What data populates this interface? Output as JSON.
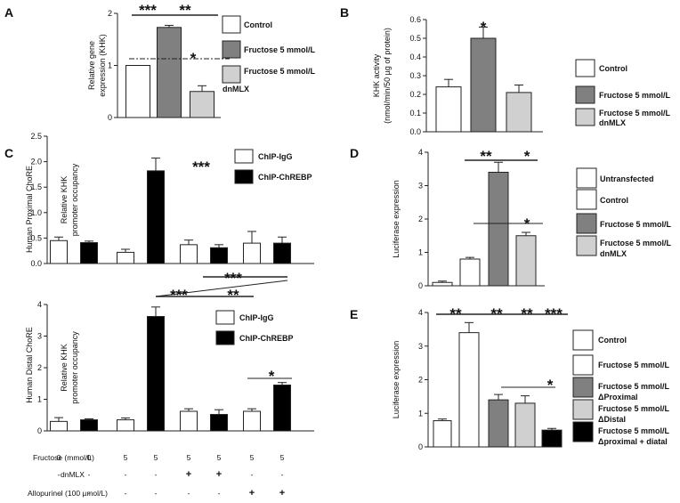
{
  "colors": {
    "white": "#ffffff",
    "dark_gray": "#808080",
    "light_gray": "#d0d0d0",
    "black": "#000000",
    "axis": "#222222"
  },
  "chart_data": [
    {
      "panel": "A",
      "type": "bar",
      "ylabel": "Relative gene expression (KHK)",
      "ylim": [
        0,
        2
      ],
      "yticks": [
        0,
        1,
        2
      ],
      "categories": [
        "Control",
        "Fructose 5 mmol/L",
        "Fructose 5 mmol/L dnMLX"
      ],
      "values": [
        1.0,
        1.73,
        0.5
      ],
      "errors": [
        0,
        0.04,
        0.11
      ],
      "fills": [
        "white",
        "dark_gray",
        "light_gray"
      ],
      "legend": [
        "Control",
        "Fructose 5 mmol/L",
        "Fructose 5 mmol/L dnMLX"
      ],
      "annotations": [
        "***",
        "**",
        "*"
      ]
    },
    {
      "panel": "B",
      "type": "bar",
      "ylabel": "KHK activity (nmol/min/50 µg of protein)",
      "ylim": [
        0,
        0.6
      ],
      "yticks": [
        0,
        0.1,
        0.2,
        0.3,
        0.4,
        0.5,
        0.6
      ],
      "categories": [
        "Control",
        "Fructose 5 mmol/L",
        "Fructose 5 mmol/L dnMLX"
      ],
      "values": [
        0.24,
        0.5,
        0.21
      ],
      "errors": [
        0.04,
        0.06,
        0.04
      ],
      "fills": [
        "white",
        "dark_gray",
        "light_gray"
      ],
      "legend": [
        "Control",
        "Fructose 5 mmol/L",
        "Fructose 5 mmol/L dnMLX"
      ],
      "annotations": [
        "*"
      ]
    },
    {
      "panel": "C",
      "type": "bar",
      "side_label": "Human Proximal ChoRE",
      "ylabel": "Relative KHK promoter occupancy",
      "ylim": [
        0,
        2.5
      ],
      "yticks": [
        0,
        0.5,
        1.0,
        1.5,
        2.0,
        2.5
      ],
      "series": [
        {
          "name": "ChIP-IgG",
          "values": [
            0.45,
            0.22,
            0.37,
            0.4
          ],
          "errors": [
            0.07,
            0.06,
            0.09,
            0.23
          ]
        },
        {
          "name": "ChIP-ChREBP",
          "values": [
            0.41,
            1.82,
            0.31,
            0.4
          ],
          "errors": [
            0.03,
            0.25,
            0.06,
            0.12
          ]
        }
      ],
      "legend": [
        "ChIP-IgG",
        "ChIP-ChREBP"
      ],
      "annotations": [
        "***"
      ]
    },
    {
      "panel": "C-lower",
      "type": "bar",
      "side_label": "Human Distal ChoRE",
      "ylabel": "Relative KHK promoter occupancy",
      "ylim": [
        0,
        4
      ],
      "yticks": [
        0,
        1,
        2,
        3,
        4
      ],
      "series": [
        {
          "name": "ChIP-IgG",
          "values": [
            0.3,
            0.35,
            0.62,
            0.62
          ],
          "errors": [
            0.12,
            0.06,
            0.08,
            0.08
          ]
        },
        {
          "name": "ChIP-ChREBP",
          "values": [
            0.35,
            3.62,
            0.52,
            1.45
          ],
          "errors": [
            0.03,
            0.3,
            0.15,
            0.08
          ]
        }
      ],
      "legend": [
        "ChIP-IgG",
        "ChIP-ChREBP"
      ],
      "annotations": [
        "***",
        "***",
        "**",
        "*"
      ]
    },
    {
      "panel": "D",
      "type": "bar",
      "ylabel": "Luciferase expression",
      "ylim": [
        0,
        4
      ],
      "yticks": [
        0,
        1,
        2,
        3,
        4
      ],
      "categories": [
        "Untransfected",
        "Control",
        "Fructose 5 mmol/L",
        "Fructose 5 mmol/L dnMLX"
      ],
      "values": [
        0.1,
        0.8,
        3.4,
        1.5
      ],
      "errors": [
        0.04,
        0.05,
        0.3,
        0.1
      ],
      "fills": [
        "white",
        "white",
        "dark_gray",
        "light_gray"
      ],
      "legend": [
        "Untransfected",
        "Control",
        "Fructose 5 mmol/L",
        "Fructose 5 mmol/L dnMLX"
      ],
      "annotations": [
        "**",
        "*",
        "*"
      ]
    },
    {
      "panel": "E",
      "type": "bar",
      "ylabel": "Luciferase expression",
      "ylim": [
        0,
        4
      ],
      "yticks": [
        0,
        1,
        2,
        3,
        4
      ],
      "categories": [
        "Control",
        "Fructose 5 mmol/L",
        "Fructose 5 mmol/L ΔProximal",
        "Fructose 5 mmol/L ΔDistal",
        "Fructose 5 mmol/L Δproximal + diatal"
      ],
      "values": [
        0.78,
        3.4,
        1.4,
        1.3,
        0.5
      ],
      "errors": [
        0.05,
        0.3,
        0.16,
        0.22,
        0.05
      ],
      "fills": [
        "white",
        "white",
        "dark_gray",
        "light_gray",
        "black"
      ],
      "legend": [
        "Control",
        "Fructose 5 mmol/L",
        "Fructose 5 mmol/L ΔProximal",
        "Fructose 5 mmol/L ΔDistal",
        "Fructose 5 mmol/L Δproximal + diatal"
      ],
      "annotations": [
        "**",
        "**",
        "**",
        "***",
        "*"
      ]
    }
  ],
  "treatment_table": {
    "rows": [
      {
        "label": "Fructose (mmol/L)",
        "cells": [
          "0",
          "0",
          "5",
          "5",
          "5",
          "5",
          "5",
          "5"
        ]
      },
      {
        "label": "dnMLX",
        "cells": [
          "-",
          "-",
          "-",
          "-",
          "+",
          "+",
          "-",
          "-"
        ]
      },
      {
        "label": "Allopurinol (100 µmol/L)",
        "cells": [
          "-",
          "-",
          "-",
          "-",
          "-",
          "-",
          "+",
          "+"
        ]
      }
    ]
  }
}
